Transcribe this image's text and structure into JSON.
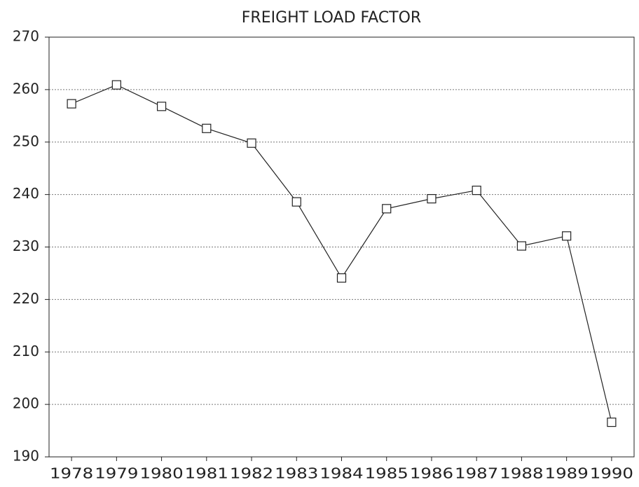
{
  "chart_data": {
    "type": "line",
    "title": "FREIGHT LOAD FACTOR",
    "categories": [
      "1978",
      "1979",
      "1980",
      "1981",
      "1982",
      "1983",
      "1984",
      "1985",
      "1986",
      "1987",
      "1988",
      "1989",
      "1990"
    ],
    "values": [
      257.3,
      260.9,
      256.8,
      252.6,
      249.8,
      238.6,
      224.1,
      237.3,
      239.2,
      240.8,
      230.2,
      232.1,
      196.6
    ],
    "color": "#222222",
    "ylim": [
      190,
      270
    ],
    "yticks": [
      190,
      200,
      210,
      220,
      230,
      240,
      250,
      260,
      270
    ],
    "grid": true
  }
}
